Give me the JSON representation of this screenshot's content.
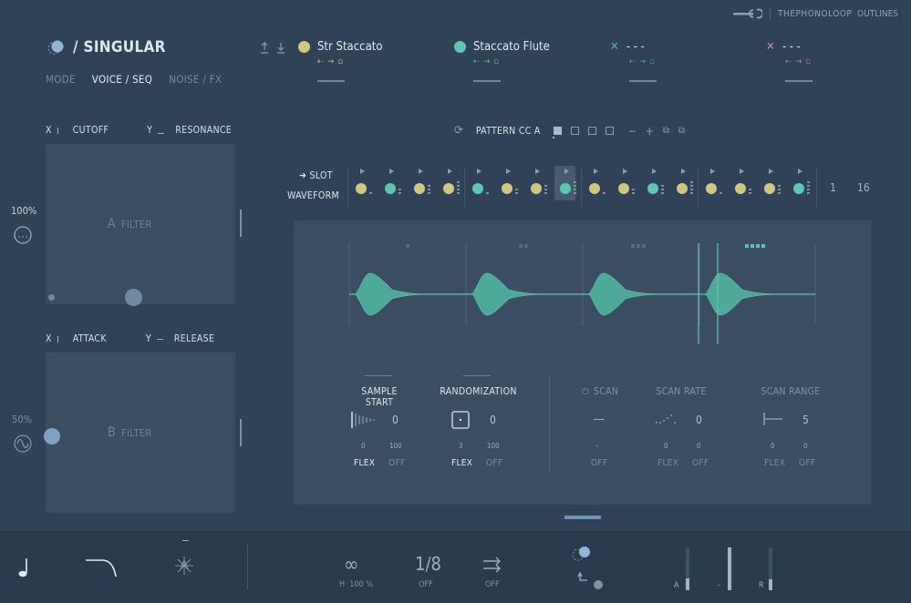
{
  "brand": {
    "name_thin": "THEPHONOLOOP",
    "name_bold": "OUTLINES"
  },
  "header": {
    "title": "/ SINGULAR"
  },
  "tabs": [
    {
      "label": "MODE",
      "active": false
    },
    {
      "label": "VOICE / SEQ",
      "active": true
    },
    {
      "label": "NOISE / FX",
      "active": false
    }
  ],
  "slots": [
    {
      "name": "Str Staccato",
      "color": "#d3c67e"
    },
    {
      "name": "Staccato Flute",
      "color": "#5fc6b4"
    },
    {
      "name": "- - -",
      "color": "#4fa8c8"
    },
    {
      "name": "- - -",
      "color": "#b38ac8"
    }
  ],
  "pad_a": {
    "x_label": "X",
    "x_param": "CUTOFF",
    "y_label": "Y",
    "y_param": "RESONANCE",
    "letter": "A",
    "name": "FILTER",
    "side_value": "100%"
  },
  "pad_b": {
    "x_label": "X",
    "x_param": "ATTACK",
    "y_label": "Y",
    "y_param": "RELEASE",
    "letter": "B",
    "name": "FILTER",
    "side_value": "50%"
  },
  "pattern": {
    "label": "PATTERN CC A"
  },
  "sequencer": {
    "slot_label": "SLOT",
    "waveform_label": "WAVEFORM",
    "start": "1",
    "end": "16",
    "steps": [
      "y",
      "t",
      "y",
      "y",
      "t",
      "y",
      "y",
      "t",
      "y",
      "y",
      "t",
      "y",
      "y",
      "y",
      "y",
      "t"
    ],
    "selected_step": 7
  },
  "params": {
    "sample_start": {
      "title": "SAMPLE START",
      "value": "0",
      "min": "0",
      "max": "100",
      "flex": "FLEX",
      "off": "OFF"
    },
    "randomization": {
      "title": "RANDOMIZATION",
      "value": "0",
      "min": "3",
      "max": "100",
      "flex": "FLEX",
      "off": "OFF"
    },
    "scan": {
      "title": "SCAN",
      "value": "–",
      "off": "OFF"
    },
    "scan_rate": {
      "title": "SCAN RATE",
      "value": "0",
      "min": "0",
      "max": "0",
      "flex": "FLEX",
      "off": "OFF"
    },
    "scan_range": {
      "title": "SCAN RANGE",
      "value": "5",
      "min": "0",
      "max": "0",
      "flex": "FLEX",
      "off": "OFF"
    }
  },
  "bottom": {
    "loop_h": "H",
    "loop_pct": "100 %",
    "rate": "1/8",
    "rate_off": "OFF",
    "dir_off": "OFF",
    "meter_a": "A",
    "meter_mid": "-",
    "meter_r": "R",
    "meter_levels": [
      0.28,
      0.0,
      0.25
    ]
  }
}
